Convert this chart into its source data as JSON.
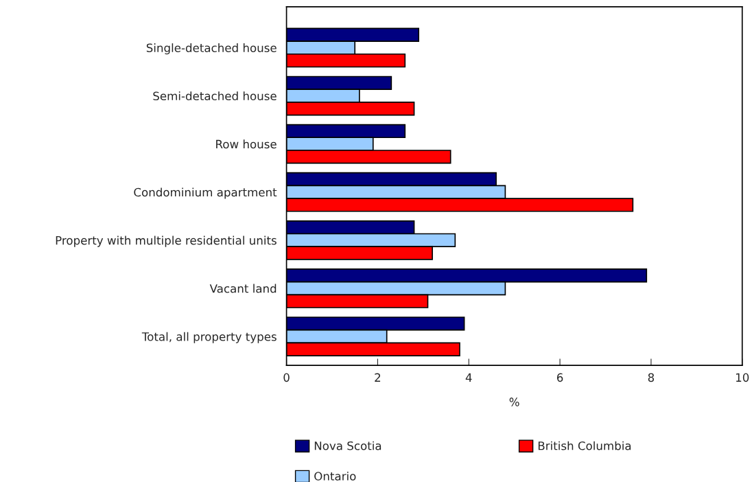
{
  "chart_data": {
    "type": "bar",
    "orientation": "horizontal",
    "xlabel": "%",
    "categories": [
      "Single-detached house",
      "Semi-detached house",
      "Row house",
      "Condominium apartment",
      "Property with multiple residential units",
      "Vacant land",
      "Total, all property types"
    ],
    "series": [
      {
        "name": "Nova Scotia",
        "color": "#000080",
        "values": [
          2.9,
          2.3,
          2.6,
          4.6,
          2.8,
          7.9,
          3.9
        ]
      },
      {
        "name": "Ontario",
        "color": "#99ccff",
        "values": [
          1.5,
          1.6,
          1.9,
          4.8,
          3.7,
          4.8,
          2.2
        ]
      },
      {
        "name": "British Columbia",
        "color": "#ff0000",
        "values": [
          2.6,
          2.8,
          3.6,
          7.6,
          3.2,
          3.1,
          3.8
        ]
      }
    ],
    "xlim": [
      0,
      10
    ],
    "xticks": [
      0,
      2,
      4,
      6,
      8,
      10
    ],
    "grid": false,
    "legend": "bottom"
  }
}
